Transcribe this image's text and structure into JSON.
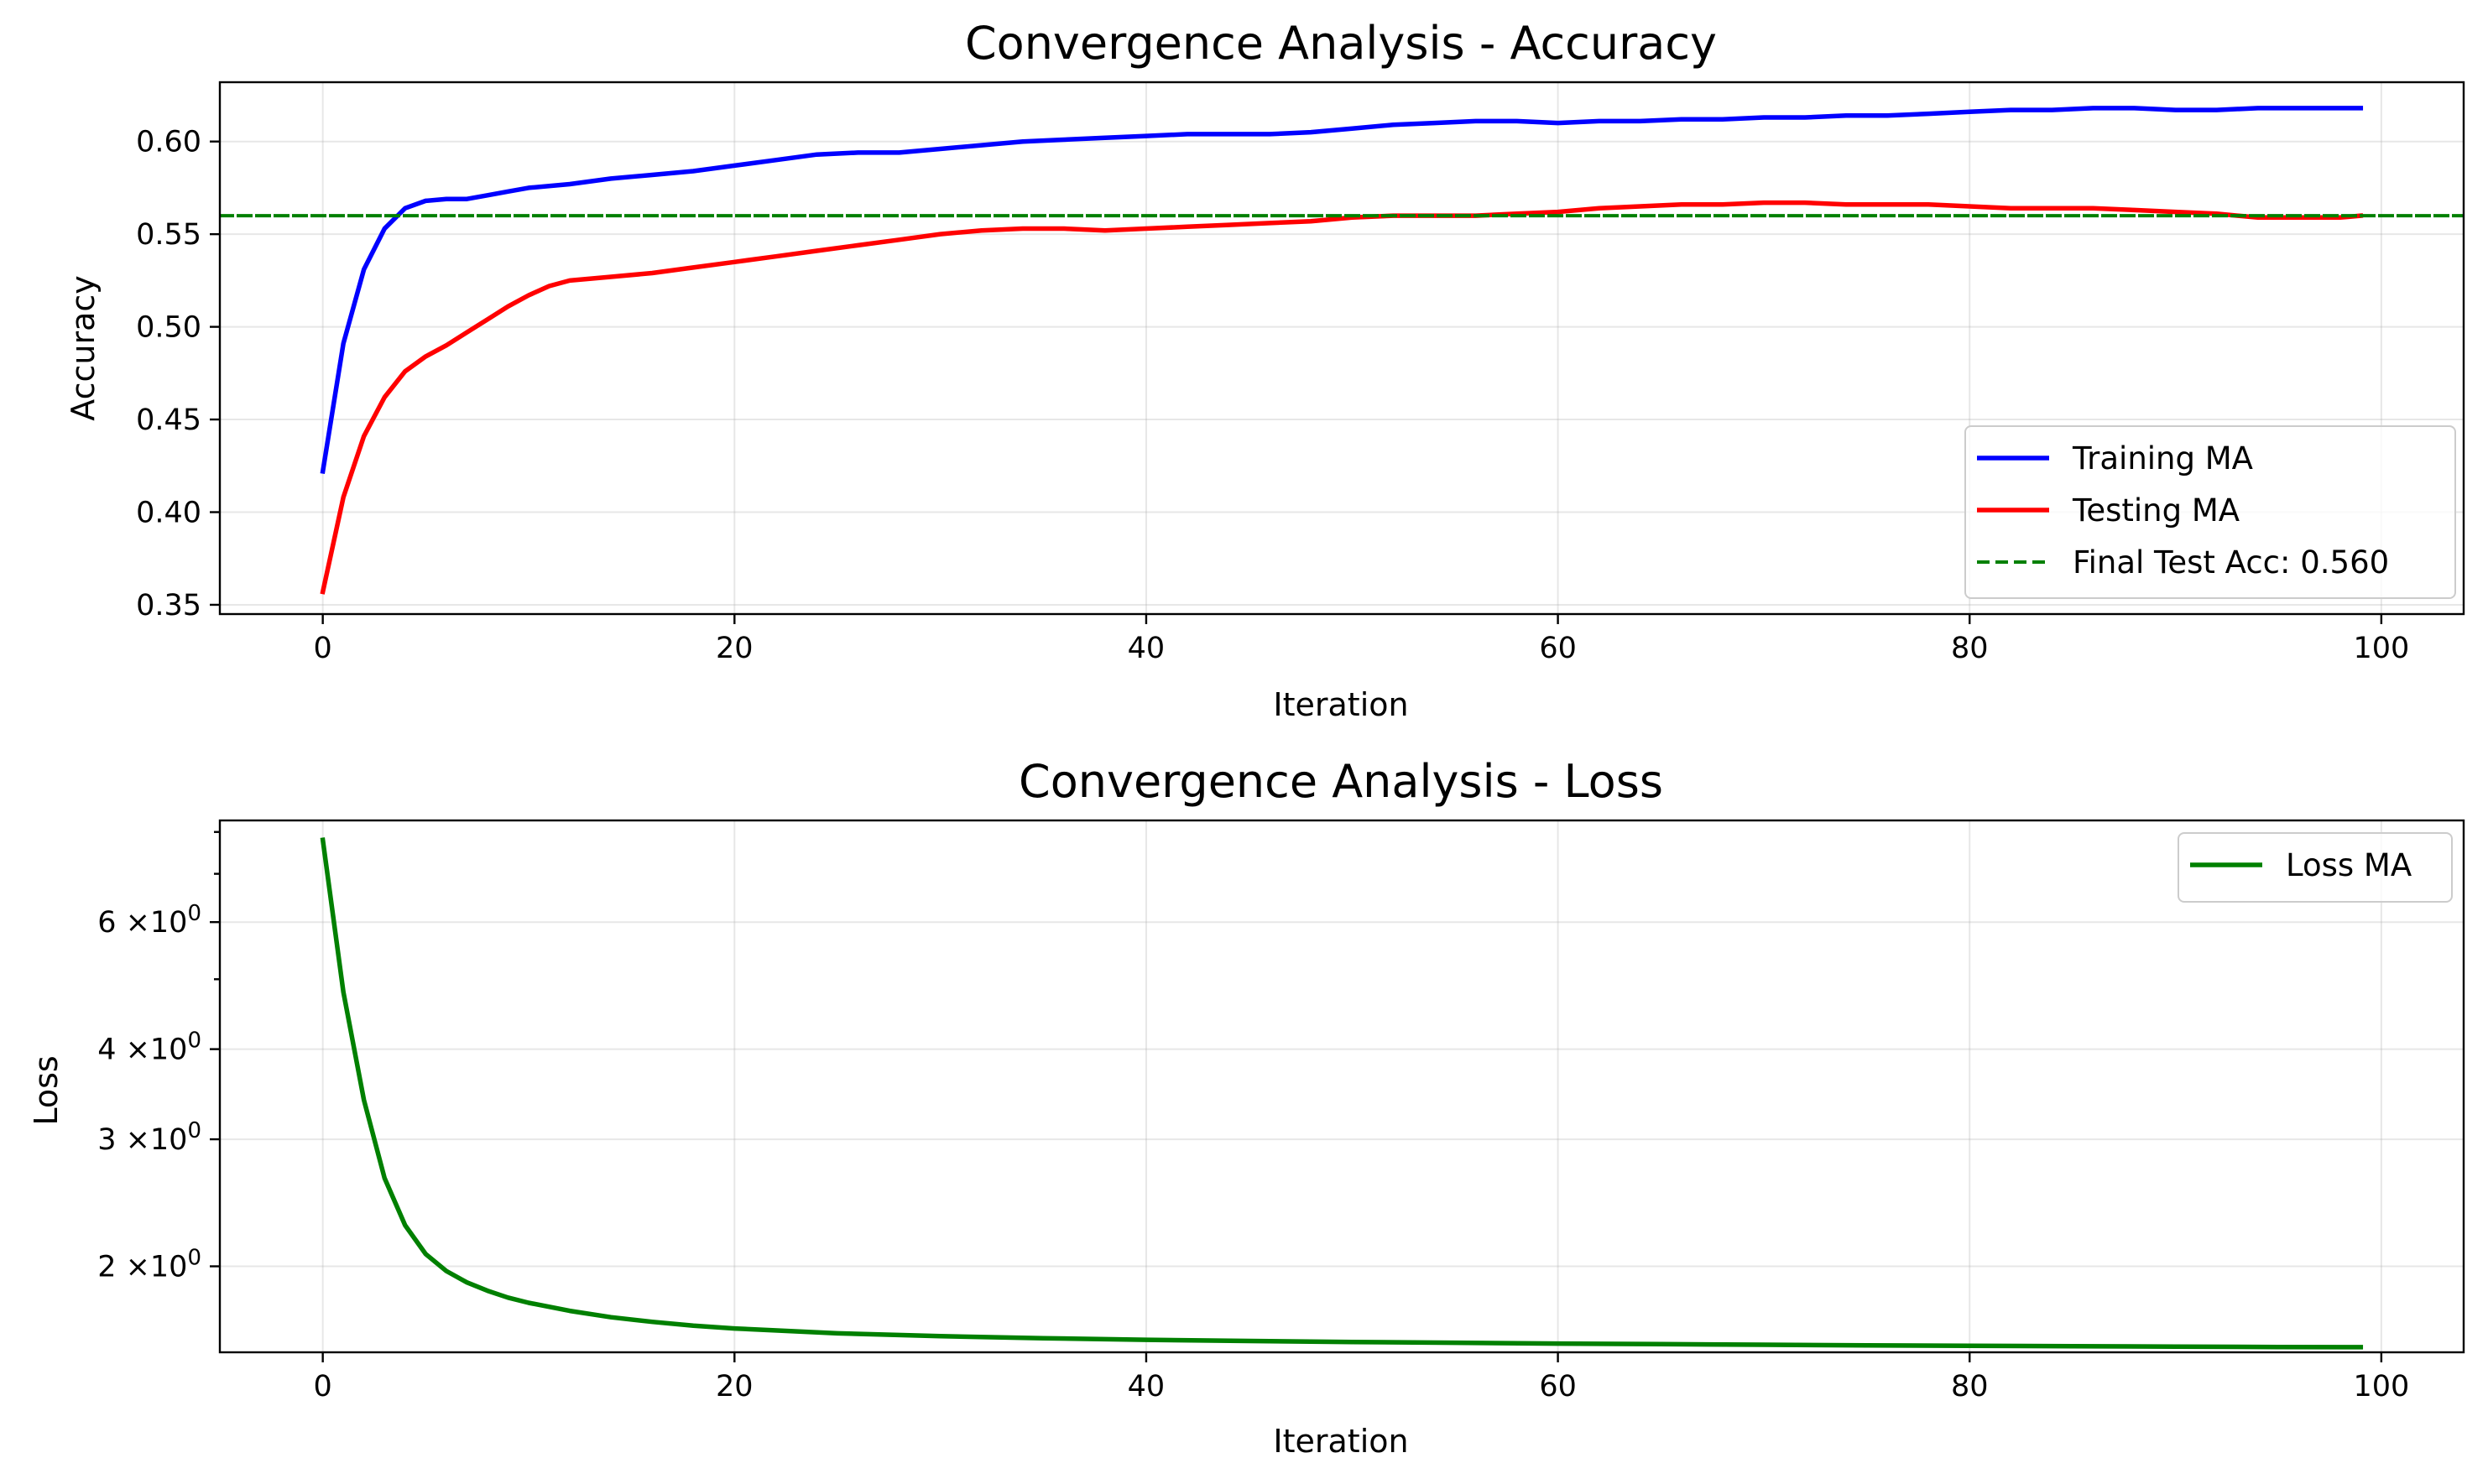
{
  "chart_data": [
    {
      "type": "line",
      "title": "Convergence Analysis - Accuracy",
      "xlabel": "Iteration",
      "ylabel": "Accuracy",
      "xlim": [
        -5,
        104
      ],
      "ylim": [
        0.345,
        0.632
      ],
      "xticks": [
        0,
        20,
        40,
        60,
        80,
        100
      ],
      "xtick_labels": [
        "0",
        "20",
        "40",
        "60",
        "80",
        "100"
      ],
      "yticks": [
        0.35,
        0.4,
        0.45,
        0.5,
        0.55,
        0.6
      ],
      "ytick_labels": [
        "0.35",
        "0.40",
        "0.45",
        "0.50",
        "0.55",
        "0.60"
      ],
      "grid": true,
      "legend_position": "lower right",
      "series": [
        {
          "name": "Training MA",
          "color": "#0000ff",
          "x": [
            0,
            1,
            2,
            3,
            4,
            5,
            6,
            7,
            8,
            9,
            10,
            12,
            14,
            16,
            18,
            20,
            22,
            24,
            26,
            28,
            30,
            32,
            34,
            36,
            38,
            40,
            42,
            44,
            46,
            48,
            50,
            52,
            54,
            56,
            58,
            60,
            62,
            64,
            66,
            68,
            70,
            72,
            74,
            76,
            78,
            80,
            82,
            84,
            86,
            88,
            90,
            92,
            94,
            96,
            98,
            99
          ],
          "y": [
            0.422,
            0.491,
            0.531,
            0.553,
            0.564,
            0.568,
            0.569,
            0.569,
            0.571,
            0.573,
            0.575,
            0.577,
            0.58,
            0.582,
            0.584,
            0.587,
            0.59,
            0.593,
            0.594,
            0.594,
            0.596,
            0.598,
            0.6,
            0.601,
            0.602,
            0.603,
            0.604,
            0.604,
            0.604,
            0.605,
            0.607,
            0.609,
            0.61,
            0.611,
            0.611,
            0.61,
            0.611,
            0.611,
            0.612,
            0.612,
            0.613,
            0.613,
            0.614,
            0.614,
            0.615,
            0.616,
            0.617,
            0.617,
            0.618,
            0.618,
            0.617,
            0.617,
            0.618,
            0.618,
            0.618,
            0.618
          ]
        },
        {
          "name": "Testing MA",
          "color": "#ff0000",
          "x": [
            0,
            1,
            2,
            3,
            4,
            5,
            6,
            7,
            8,
            9,
            10,
            11,
            12,
            14,
            16,
            18,
            20,
            22,
            24,
            26,
            28,
            30,
            32,
            34,
            36,
            38,
            40,
            42,
            44,
            46,
            48,
            50,
            52,
            54,
            56,
            58,
            60,
            62,
            64,
            66,
            68,
            70,
            72,
            74,
            76,
            78,
            80,
            82,
            84,
            86,
            88,
            90,
            92,
            94,
            96,
            98,
            99
          ],
          "y": [
            0.357,
            0.408,
            0.441,
            0.462,
            0.476,
            0.484,
            0.49,
            0.497,
            0.504,
            0.511,
            0.517,
            0.522,
            0.525,
            0.527,
            0.529,
            0.532,
            0.535,
            0.538,
            0.541,
            0.544,
            0.547,
            0.55,
            0.552,
            0.553,
            0.553,
            0.552,
            0.553,
            0.554,
            0.555,
            0.556,
            0.557,
            0.559,
            0.56,
            0.56,
            0.56,
            0.561,
            0.562,
            0.564,
            0.565,
            0.566,
            0.566,
            0.567,
            0.567,
            0.566,
            0.566,
            0.566,
            0.565,
            0.564,
            0.564,
            0.564,
            0.563,
            0.562,
            0.561,
            0.559,
            0.559,
            0.559,
            0.56
          ]
        },
        {
          "name": "Final Test Acc: 0.560",
          "color": "#008000",
          "dashed": true,
          "x": [
            -5,
            104
          ],
          "y": [
            0.56,
            0.56
          ]
        }
      ]
    },
    {
      "type": "line",
      "title": "Convergence Analysis - Loss",
      "xlabel": "Iteration",
      "ylabel": "Loss",
      "yscale": "log",
      "xlim": [
        -5,
        104
      ],
      "ylim": [
        1.52,
        8.3
      ],
      "xticks": [
        0,
        20,
        40,
        60,
        80,
        100
      ],
      "xtick_labels": [
        "0",
        "20",
        "40",
        "60",
        "80",
        "100"
      ],
      "yticks": [
        2,
        3,
        4,
        6
      ],
      "ytick_base": [
        "2",
        "3",
        "4",
        "6"
      ],
      "ytick_mult": "×10",
      "ytick_exp": "0",
      "yminor_ticks": [
        5,
        7,
        8
      ],
      "grid": true,
      "legend_position": "upper right",
      "series": [
        {
          "name": "Loss MA",
          "color": "#008000",
          "x": [
            0,
            1,
            2,
            3,
            4,
            5,
            6,
            7,
            8,
            9,
            10,
            12,
            14,
            16,
            18,
            20,
            25,
            30,
            35,
            40,
            45,
            50,
            55,
            60,
            65,
            70,
            75,
            80,
            85,
            90,
            95,
            99
          ],
          "y": [
            7.8,
            4.8,
            3.4,
            2.65,
            2.28,
            2.08,
            1.97,
            1.9,
            1.85,
            1.81,
            1.78,
            1.735,
            1.7,
            1.675,
            1.655,
            1.64,
            1.615,
            1.6,
            1.59,
            1.582,
            1.576,
            1.571,
            1.567,
            1.563,
            1.56,
            1.557,
            1.554,
            1.552,
            1.55,
            1.548,
            1.546,
            1.545
          ]
        }
      ]
    }
  ]
}
